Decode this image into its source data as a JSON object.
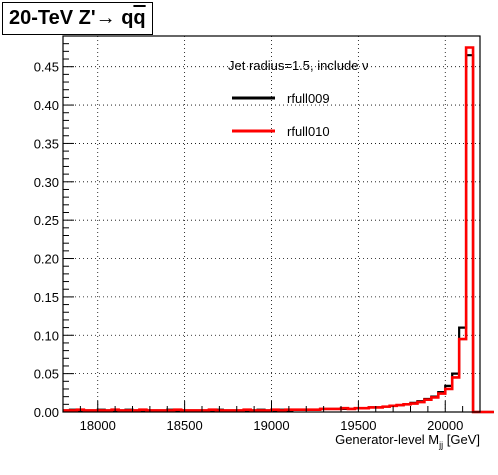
{
  "chart_data": {
    "type": "histogram",
    "title": {
      "prefix": "20-TeV Z'",
      "arrow": "→",
      "q": "q",
      "qbar": "q"
    },
    "xlabel": {
      "main": "Generator-level M",
      "sub": "jj",
      "unit": " [GeV]"
    },
    "ylabel": "",
    "xlim": [
      17800,
      20200
    ],
    "ylim": [
      0,
      0.49
    ],
    "xticks": [
      18000,
      18500,
      19000,
      19500,
      20000
    ],
    "xtick_labels": [
      "18000",
      "18500",
      "19000",
      "19500",
      "20000"
    ],
    "yticks": [
      0,
      0.05,
      0.1,
      0.15,
      0.2,
      0.25,
      0.3,
      0.35,
      0.4,
      0.45
    ],
    "ytick_labels": [
      "0.00",
      "0.05",
      "0.10",
      "0.15",
      "0.20",
      "0.25",
      "0.30",
      "0.35",
      "0.40",
      "0.45"
    ],
    "grid": true,
    "bin_width": 40,
    "bin_start": 17800,
    "annotation": "Jet radius=1.5, include ν",
    "legend_position": "top-right",
    "series": [
      {
        "name": "rfull009",
        "color": "#000000",
        "values": [
          0.002,
          0.003,
          0.002,
          0.002,
          0.002,
          0.003,
          0.002,
          0.002,
          0.002,
          0.003,
          0.002,
          0.002,
          0.002,
          0.002,
          0.002,
          0.003,
          0.002,
          0.002,
          0.002,
          0.002,
          0.002,
          0.002,
          0.003,
          0.002,
          0.002,
          0.002,
          0.002,
          0.002,
          0.003,
          0.002,
          0.002,
          0.003,
          0.002,
          0.003,
          0.003,
          0.003,
          0.003,
          0.004,
          0.004,
          0.004,
          0.004,
          0.004,
          0.005,
          0.005,
          0.006,
          0.006,
          0.007,
          0.008,
          0.009,
          0.01,
          0.012,
          0.014,
          0.017,
          0.02,
          0.026,
          0.034,
          0.05,
          0.11,
          0.465,
          0.0,
          0.0,
          0.0
        ]
      },
      {
        "name": "rfull010",
        "color": "#ff0000",
        "values": [
          0.002,
          0.002,
          0.003,
          0.002,
          0.002,
          0.002,
          0.002,
          0.003,
          0.002,
          0.002,
          0.002,
          0.003,
          0.002,
          0.002,
          0.002,
          0.002,
          0.003,
          0.002,
          0.002,
          0.002,
          0.002,
          0.003,
          0.002,
          0.002,
          0.002,
          0.002,
          0.003,
          0.002,
          0.002,
          0.002,
          0.003,
          0.002,
          0.003,
          0.003,
          0.003,
          0.003,
          0.003,
          0.004,
          0.004,
          0.004,
          0.005,
          0.004,
          0.005,
          0.005,
          0.006,
          0.006,
          0.007,
          0.008,
          0.009,
          0.01,
          0.011,
          0.013,
          0.016,
          0.019,
          0.024,
          0.03,
          0.045,
          0.095,
          0.475,
          0.0,
          0.0,
          0.0
        ]
      }
    ]
  }
}
